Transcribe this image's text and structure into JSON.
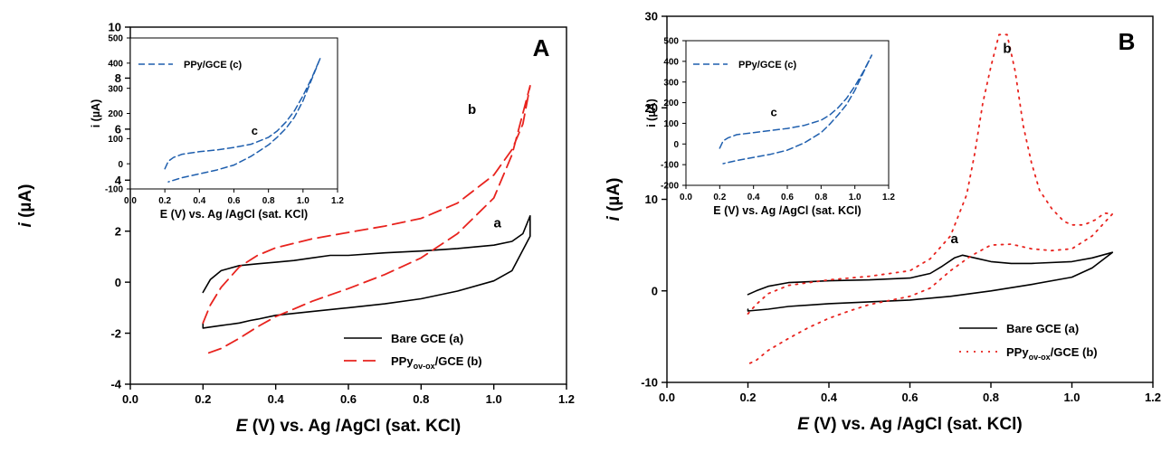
{
  "colors": {
    "bare": "#000000",
    "ppy_ovox": "#e8231e",
    "ppy": "#1f5fae"
  },
  "panels": [
    {
      "id": "A",
      "panel_label": "A",
      "xlabel_prefix": "E",
      "xlabel_rest": " (V) vs. Ag /AgCl (sat. KCl)",
      "ylabel_prefix": "i",
      "ylabel_rest": " (µA)",
      "legend": [
        {
          "label": "Bare GCE (a)",
          "sub": ""
        },
        {
          "label_pre": "PPy",
          "sub": "ov-ox",
          "label_post": "/GCE (b)"
        }
      ],
      "curve_labels": [
        "a",
        "b"
      ],
      "inset": {
        "legend": "PPy/GCE (c)",
        "curve_label": "c",
        "xlabel": "E (V) vs. Ag /AgCl (sat. KCl)",
        "ylabel": "i (µA)"
      }
    },
    {
      "id": "B",
      "panel_label": "B",
      "xlabel_prefix": "E",
      "xlabel_rest": " (V) vs. Ag /AgCl (sat. KCl)",
      "ylabel_prefix": "i",
      "ylabel_rest": " (µA)",
      "legend": [
        {
          "label": "Bare GCE (a)",
          "sub": ""
        },
        {
          "label_pre": "PPy",
          "sub": "ov-ox",
          "label_post": "/GCE (b)"
        }
      ],
      "curve_labels": [
        "a",
        "b"
      ],
      "inset": {
        "legend": "PPy/GCE (c)",
        "curve_label": "c",
        "xlabel": "E (V) vs. Ag /AgCl (sat. KCl)",
        "ylabel": "i (µA)"
      }
    }
  ],
  "chart_data": [
    {
      "type": "line",
      "panel": "A",
      "xlim": [
        0.0,
        1.2
      ],
      "ylim": [
        -4,
        10
      ],
      "xticks": [
        "0.0",
        "0.2",
        "0.4",
        "0.6",
        "0.8",
        "1.0",
        "1.2"
      ],
      "yticks": [
        "-4",
        "-2",
        "0",
        "2",
        "4",
        "6",
        "8",
        "10"
      ],
      "series": [
        {
          "name": "Bare GCE (a)",
          "style": "solid",
          "x": [
            0.2,
            0.22,
            0.25,
            0.3,
            0.35,
            0.4,
            0.45,
            0.5,
            0.55,
            0.6,
            0.7,
            0.8,
            0.9,
            1.0,
            1.05,
            1.08,
            1.1,
            1.1,
            1.05,
            1.0,
            0.9,
            0.8,
            0.7,
            0.6,
            0.5,
            0.4,
            0.35,
            0.33,
            0.3,
            0.25,
            0.2,
            0.2
          ],
          "y": [
            -0.4,
            0.1,
            0.45,
            0.65,
            0.72,
            0.78,
            0.85,
            0.95,
            1.05,
            1.05,
            1.15,
            1.22,
            1.32,
            1.45,
            1.6,
            1.9,
            2.6,
            1.8,
            0.45,
            0.05,
            -0.35,
            -0.65,
            -0.85,
            -1.0,
            -1.15,
            -1.3,
            -1.45,
            -1.5,
            -1.6,
            -1.7,
            -1.8,
            -1.6
          ]
        },
        {
          "name": "PPy ov-ox/GCE (b)",
          "style": "dashed",
          "x": [
            0.2,
            0.22,
            0.25,
            0.3,
            0.35,
            0.4,
            0.5,
            0.6,
            0.7,
            0.8,
            0.9,
            1.0,
            1.05,
            1.08,
            1.1,
            1.1,
            1.05,
            1.0,
            0.9,
            0.8,
            0.7,
            0.6,
            0.5,
            0.45,
            0.4,
            0.35,
            0.3,
            0.25,
            0.2
          ],
          "y": [
            -1.6,
            -0.9,
            -0.2,
            0.6,
            1.05,
            1.35,
            1.7,
            1.95,
            2.2,
            2.5,
            3.1,
            4.2,
            5.2,
            6.2,
            7.7,
            7.7,
            5.0,
            3.3,
            1.9,
            0.95,
            0.3,
            -0.25,
            -0.75,
            -1.05,
            -1.35,
            -1.75,
            -2.2,
            -2.6,
            -2.85
          ]
        }
      ],
      "annotations": [
        {
          "text": "a",
          "x": 1.01,
          "y": 2.15
        },
        {
          "text": "b",
          "x": 0.94,
          "y": 6.6
        },
        {
          "text": "A",
          "panel_label": true
        }
      ],
      "legend_position": "bottom-right",
      "inset": {
        "type": "line",
        "xlim": [
          0.0,
          1.2
        ],
        "ylim": [
          -100,
          500
        ],
        "xticks": [
          "0.0",
          "0.2",
          "0.4",
          "0.6",
          "0.8",
          "1.0",
          "1.2"
        ],
        "yticks": [
          "-100",
          "0",
          "100",
          "200",
          "300",
          "400",
          "500"
        ],
        "series": [
          {
            "name": "PPy/GCE (c)",
            "style": "dashed",
            "x": [
              0.2,
              0.22,
              0.25,
              0.3,
              0.4,
              0.5,
              0.6,
              0.7,
              0.8,
              0.85,
              0.9,
              0.95,
              1.0,
              1.05,
              1.1,
              1.1,
              1.05,
              1.0,
              0.95,
              0.9,
              0.85,
              0.8,
              0.7,
              0.6,
              0.5,
              0.4,
              0.3,
              0.22
            ],
            "y": [
              -20,
              10,
              25,
              38,
              48,
              55,
              65,
              78,
              105,
              130,
              165,
              210,
              270,
              340,
              420,
              420,
              335,
              250,
              185,
              140,
              105,
              75,
              30,
              -5,
              -25,
              -40,
              -55,
              -72
            ]
          }
        ],
        "annotations": [
          {
            "text": "c",
            "x": 0.72,
            "y": 115
          }
        ],
        "legend_position": "top-left"
      }
    },
    {
      "type": "line",
      "panel": "B",
      "xlim": [
        0.0,
        1.2
      ],
      "ylim": [
        -10,
        30
      ],
      "xticks": [
        "0.0",
        "0.2",
        "0.4",
        "0.6",
        "0.8",
        "1.0",
        "1.2"
      ],
      "yticks": [
        "-10",
        "0",
        "10",
        "20",
        "30"
      ],
      "series": [
        {
          "name": "Bare GCE (a)",
          "style": "solid",
          "x": [
            0.2,
            0.22,
            0.25,
            0.3,
            0.4,
            0.5,
            0.6,
            0.65,
            0.68,
            0.71,
            0.73,
            0.76,
            0.8,
            0.85,
            0.9,
            1.0,
            1.05,
            1.1,
            1.1,
            1.05,
            1.0,
            0.9,
            0.8,
            0.75,
            0.7,
            0.6,
            0.5,
            0.4,
            0.3,
            0.25,
            0.2,
            0.2
          ],
          "y": [
            -0.4,
            0.0,
            0.5,
            0.9,
            1.1,
            1.2,
            1.4,
            1.9,
            2.7,
            3.6,
            3.9,
            3.6,
            3.2,
            3.0,
            3.0,
            3.2,
            3.6,
            4.2,
            4.2,
            2.5,
            1.5,
            0.7,
            0.0,
            -0.3,
            -0.6,
            -1.0,
            -1.2,
            -1.4,
            -1.7,
            -2.0,
            -2.2,
            -2.0
          ]
        },
        {
          "name": "PPy ov-ox/GCE (b)",
          "style": "dotted",
          "x": [
            0.2,
            0.22,
            0.25,
            0.3,
            0.4,
            0.5,
            0.6,
            0.65,
            0.7,
            0.74,
            0.76,
            0.78,
            0.8,
            0.82,
            0.84,
            0.86,
            0.88,
            0.9,
            0.92,
            0.95,
            0.98,
            1.0,
            1.03,
            1.06,
            1.08,
            1.1,
            1.1,
            1.05,
            1.0,
            0.95,
            0.9,
            0.85,
            0.8,
            0.75,
            0.7,
            0.65,
            0.6,
            0.5,
            0.45,
            0.4,
            0.35,
            0.3,
            0.25,
            0.22,
            0.2
          ],
          "y": [
            -2.5,
            -1.5,
            -0.3,
            0.6,
            1.2,
            1.6,
            2.2,
            3.5,
            6.0,
            10.5,
            15.0,
            20.5,
            24.5,
            28.0,
            28.0,
            24.0,
            18.0,
            14.0,
            11.0,
            9.0,
            7.6,
            7.2,
            7.2,
            7.8,
            8.5,
            8.4,
            8.4,
            6.0,
            4.6,
            4.4,
            4.6,
            5.1,
            5.0,
            3.8,
            2.2,
            0.3,
            -0.6,
            -1.5,
            -2.2,
            -3.0,
            -4.0,
            -5.2,
            -6.5,
            -7.6,
            -8.0
          ]
        }
      ],
      "annotations": [
        {
          "text": "a",
          "x": 0.71,
          "y": 5.2
        },
        {
          "text": "b",
          "x": 0.84,
          "y": 26.0
        },
        {
          "text": "B",
          "panel_label": true
        }
      ],
      "legend_position": "bottom-right",
      "inset": {
        "type": "line",
        "xlim": [
          0.0,
          1.2
        ],
        "ylim": [
          -200,
          500
        ],
        "xticks": [
          "0.0",
          "0.2",
          "0.4",
          "0.6",
          "0.8",
          "1.0",
          "1.2"
        ],
        "yticks": [
          "-200",
          "-100",
          "0",
          "100",
          "200",
          "300",
          "400",
          "500"
        ],
        "series": [
          {
            "name": "PPy/GCE (c)",
            "style": "dashed",
            "x": [
              0.2,
              0.22,
              0.25,
              0.3,
              0.4,
              0.5,
              0.6,
              0.7,
              0.8,
              0.85,
              0.9,
              0.95,
              1.0,
              1.05,
              1.1,
              1.1,
              1.05,
              1.0,
              0.95,
              0.9,
              0.85,
              0.8,
              0.7,
              0.6,
              0.5,
              0.4,
              0.3,
              0.22
            ],
            "y": [
              -20,
              15,
              30,
              45,
              55,
              65,
              75,
              90,
              115,
              140,
              175,
              220,
              280,
              350,
              430,
              430,
              345,
              260,
              190,
              140,
              95,
              55,
              5,
              -30,
              -50,
              -65,
              -80,
              -95
            ]
          }
        ],
        "annotations": [
          {
            "text": "c",
            "x": 0.52,
            "y": 135
          }
        ],
        "legend_position": "top-left"
      }
    }
  ]
}
